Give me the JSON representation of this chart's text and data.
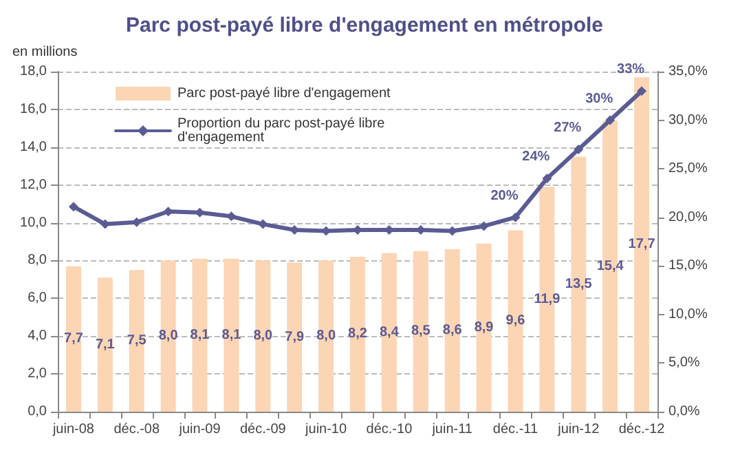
{
  "chart_data": {
    "type": "bar",
    "title": "Parc post-payé libre d'engagement en métropole",
    "ylabel": "en millions",
    "categories": [
      "juin-08",
      null,
      "déc.-08",
      null,
      "juin-09",
      null,
      "déc.-09",
      null,
      "juin-10",
      null,
      "déc.-10",
      null,
      "juin-11",
      null,
      "déc.-11",
      null,
      "juin-12",
      null,
      "déc.-12"
    ],
    "series": [
      {
        "name": "Parc post-payé libre d'engagement",
        "color": "#fcd5b4",
        "values": [
          7.7,
          7.1,
          7.5,
          8.0,
          8.1,
          8.1,
          8.0,
          7.9,
          8.0,
          8.2,
          8.4,
          8.5,
          8.6,
          8.9,
          9.6,
          11.9,
          13.5,
          15.4,
          17.7
        ],
        "value_labels": [
          "7,7",
          "7,1",
          "7,5",
          "8,0",
          "8,1",
          "8,1",
          "8,0",
          "7,9",
          "8,0",
          "8,2",
          "8,4",
          "8,5",
          "8,6",
          "8,9",
          "9,6",
          "11,9",
          "13,5",
          "15,4",
          "17,7"
        ]
      },
      {
        "name": "Proportion du parc post-payé libre d'engagement",
        "type": "line",
        "axis": "y2",
        "color": "#5b5b94",
        "values": [
          21.1,
          19.3,
          19.5,
          20.6,
          20.5,
          20.1,
          19.3,
          18.7,
          18.6,
          18.7,
          18.7,
          18.7,
          18.6,
          19.1,
          20,
          24,
          27,
          30,
          33
        ],
        "value_labels": [
          null,
          null,
          null,
          null,
          null,
          null,
          null,
          null,
          null,
          null,
          null,
          null,
          null,
          null,
          "20%",
          "24%",
          "27%",
          "30%",
          "33%"
        ]
      }
    ],
    "ylim": [
      0,
      18
    ],
    "yticks": [
      {
        "value": 0,
        "label": "0,0"
      },
      {
        "value": 2,
        "label": "2,0"
      },
      {
        "value": 4,
        "label": "4,0"
      },
      {
        "value": 6,
        "label": "6,0"
      },
      {
        "value": 8,
        "label": "8,0"
      },
      {
        "value": 10,
        "label": "10,0"
      },
      {
        "value": 12,
        "label": "12,0"
      },
      {
        "value": 14,
        "label": "14,0"
      },
      {
        "value": 16,
        "label": "16,0"
      },
      {
        "value": 18,
        "label": "18,0"
      }
    ],
    "y2lim": [
      0,
      35
    ],
    "y2ticks": [
      {
        "value": 0,
        "label": "0,0%"
      },
      {
        "value": 5,
        "label": "5,0%"
      },
      {
        "value": 10,
        "label": "10,0%"
      },
      {
        "value": 15,
        "label": "15,0%"
      },
      {
        "value": 20,
        "label": "20,0%"
      },
      {
        "value": 25,
        "label": "25,0%"
      },
      {
        "value": 30,
        "label": "30,0%"
      },
      {
        "value": 35,
        "label": "35,0%"
      }
    ],
    "grid": "y",
    "legend": "top left",
    "marker": "diamond"
  }
}
